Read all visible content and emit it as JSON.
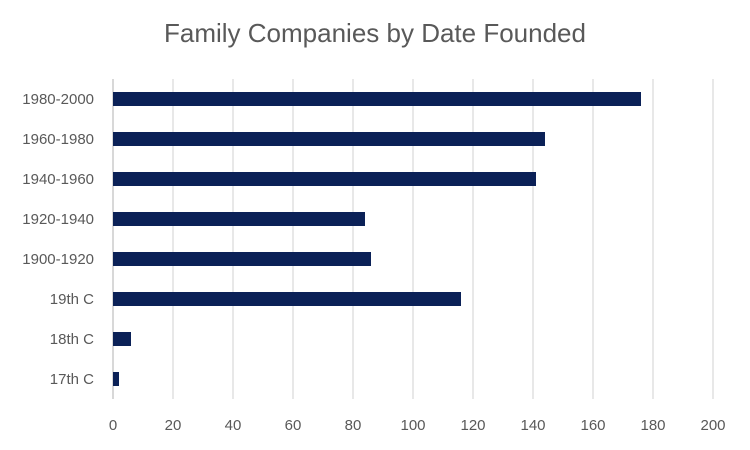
{
  "chart_data": {
    "type": "bar",
    "orientation": "horizontal",
    "title": "Family Companies by Date Founded",
    "categories": [
      "1980-2000",
      "1960-1980",
      "1940-1960",
      "1920-1940",
      "1900-1920",
      "19th C",
      "18th C",
      "17th C"
    ],
    "values": [
      176,
      144,
      141,
      84,
      86,
      116,
      6,
      2
    ],
    "xlim": [
      0,
      200
    ],
    "xticks": [
      0,
      20,
      40,
      60,
      80,
      100,
      120,
      140,
      160,
      180,
      200
    ],
    "grid": "vertical",
    "bar_color": "#0b2157",
    "xlabel": "",
    "ylabel": ""
  }
}
